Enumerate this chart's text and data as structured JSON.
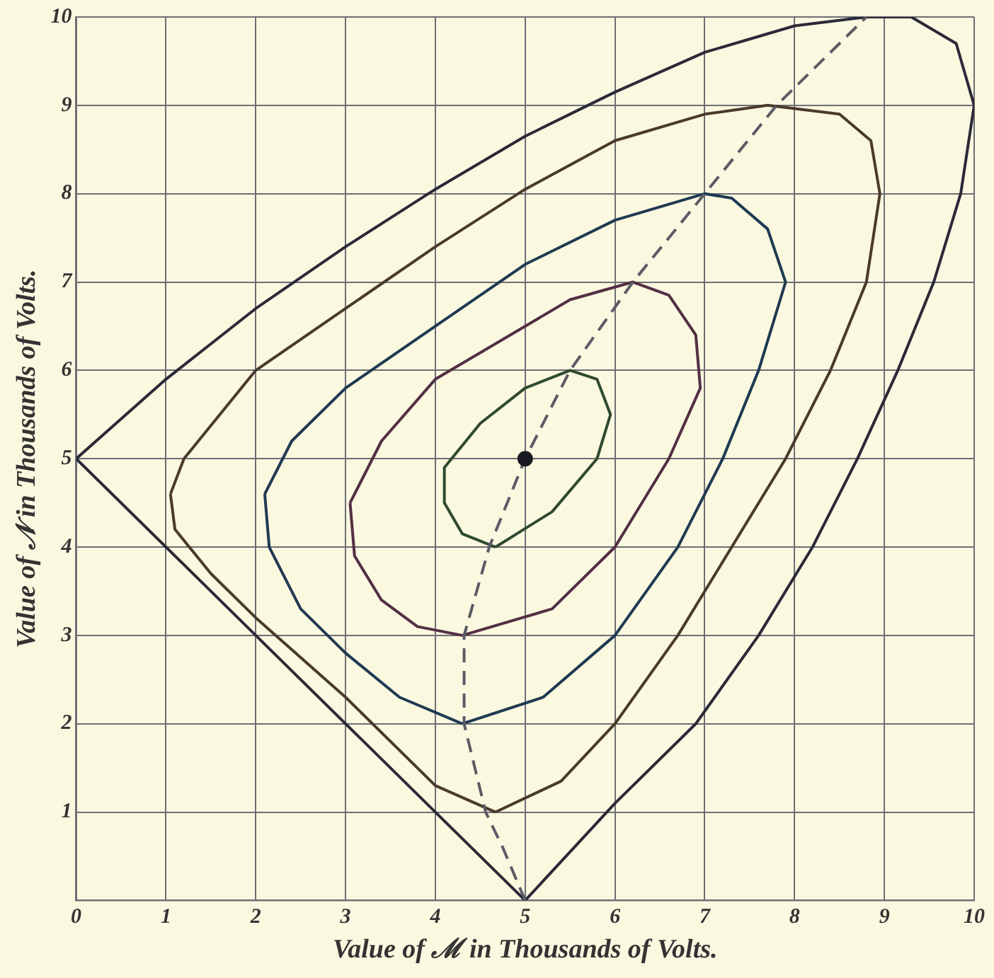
{
  "chart_data": {
    "type": "line",
    "xlabel": "Value of ℳ in Thousands of Volts.",
    "ylabel": "Value of 𝒩 in Thousands of Volts.",
    "xlim": [
      0,
      10
    ],
    "ylim": [
      0,
      10
    ],
    "xticks": [
      0,
      1,
      2,
      3,
      4,
      5,
      6,
      7,
      8,
      9,
      10
    ],
    "yticks": [
      {
        "value": 0,
        "label": null
      },
      1,
      2,
      3,
      4,
      5,
      6,
      7,
      8,
      9,
      10
    ],
    "grid": true,
    "legend": false,
    "marker": "none",
    "line_style": "solid",
    "series": [
      {
        "color": "#2b2a38",
        "x": [
          5,
          6,
          6.9,
          7.6,
          8.2,
          8.7,
          9.15,
          9.55,
          9.85,
          10,
          9.8,
          9.3,
          8.8,
          8,
          7,
          6,
          5,
          4,
          3,
          2,
          1,
          0
        ],
        "values": [
          0,
          1.1,
          2,
          3,
          4,
          5,
          6,
          7,
          8,
          9,
          9.7,
          10,
          10,
          9.9,
          9.6,
          9.15,
          8.65,
          8.05,
          7.4,
          6.7,
          5.9,
          5
        ]
      },
      {
        "color": "#2b2a38",
        "x": [
          0,
          1,
          2,
          3,
          4,
          5
        ],
        "values": [
          5,
          4,
          3,
          2,
          1,
          0
        ]
      },
      {
        "color": "#4a3a2c",
        "x": [
          4.67,
          5.4,
          6,
          6.7,
          7.3,
          7.9,
          8.4,
          8.8,
          8.95,
          8.85,
          8.5,
          7.7,
          7,
          6,
          5,
          4,
          3,
          2,
          1.2,
          1.05
        ],
        "values": [
          1,
          1.35,
          2,
          3,
          4,
          5,
          6,
          7,
          8,
          8.6,
          8.9,
          9,
          8.9,
          8.6,
          8.05,
          7.4,
          6.7,
          6,
          5,
          4.6
        ]
      },
      {
        "color": "#4a3a2c",
        "x": [
          1.05,
          1.1,
          1.5,
          2,
          3,
          4,
          4.67
        ],
        "values": [
          4.6,
          4.2,
          3.7,
          3.2,
          2.3,
          1.3,
          1
        ]
      },
      {
        "color": "#1f3a52",
        "x": [
          4.3,
          5.2,
          6,
          6.7,
          7.2,
          7.6,
          7.9,
          7.7,
          7.3,
          7,
          6,
          5,
          4,
          3,
          2.4,
          2.1
        ],
        "values": [
          2,
          2.3,
          3,
          4,
          5,
          6,
          7,
          7.6,
          7.95,
          8,
          7.7,
          7.2,
          6.5,
          5.8,
          5.2,
          4.6
        ]
      },
      {
        "color": "#1f3a52",
        "x": [
          2.1,
          2.15,
          2.5,
          3,
          3.6,
          4.3
        ],
        "values": [
          4.6,
          4,
          3.3,
          2.8,
          2.3,
          2
        ]
      },
      {
        "color": "#532f44",
        "x": [
          4.3,
          5.3,
          6,
          6.6,
          6.95,
          6.9,
          6.6,
          6.2,
          5.5,
          5,
          4,
          3.4,
          3.05
        ],
        "values": [
          3,
          3.3,
          4,
          5,
          5.8,
          6.4,
          6.85,
          7,
          6.8,
          6.5,
          5.9,
          5.2,
          4.5
        ]
      },
      {
        "color": "#532f44",
        "x": [
          3.05,
          3.1,
          3.4,
          3.8,
          4.3
        ],
        "values": [
          4.5,
          3.9,
          3.4,
          3.1,
          3
        ]
      },
      {
        "color": "#2f4a30",
        "x": [
          4.67,
          5.3,
          5.8,
          5.95,
          5.8,
          5.5,
          5,
          4.5,
          4.1,
          4.1
        ],
        "values": [
          4,
          4.4,
          5,
          5.5,
          5.9,
          6,
          5.8,
          5.4,
          4.9,
          4.5
        ]
      },
      {
        "color": "#2f4a30",
        "x": [
          4.1,
          4.3,
          4.67
        ],
        "values": [
          4.5,
          4.15,
          4
        ]
      },
      {
        "color": "#5c5c66",
        "line_style": "dashed",
        "x": [
          5,
          4.75,
          4.56,
          4.32,
          4.32,
          4.6,
          5,
          5.5,
          6.2,
          7,
          7.8,
          8.8
        ],
        "values": [
          0,
          0.6,
          1,
          2,
          3,
          4,
          5,
          6,
          7,
          8,
          9,
          10
        ]
      },
      {
        "type": "scatter",
        "marker": "circle",
        "color": "#1a1a22",
        "x": [
          5
        ],
        "values": [
          5
        ]
      }
    ]
  }
}
